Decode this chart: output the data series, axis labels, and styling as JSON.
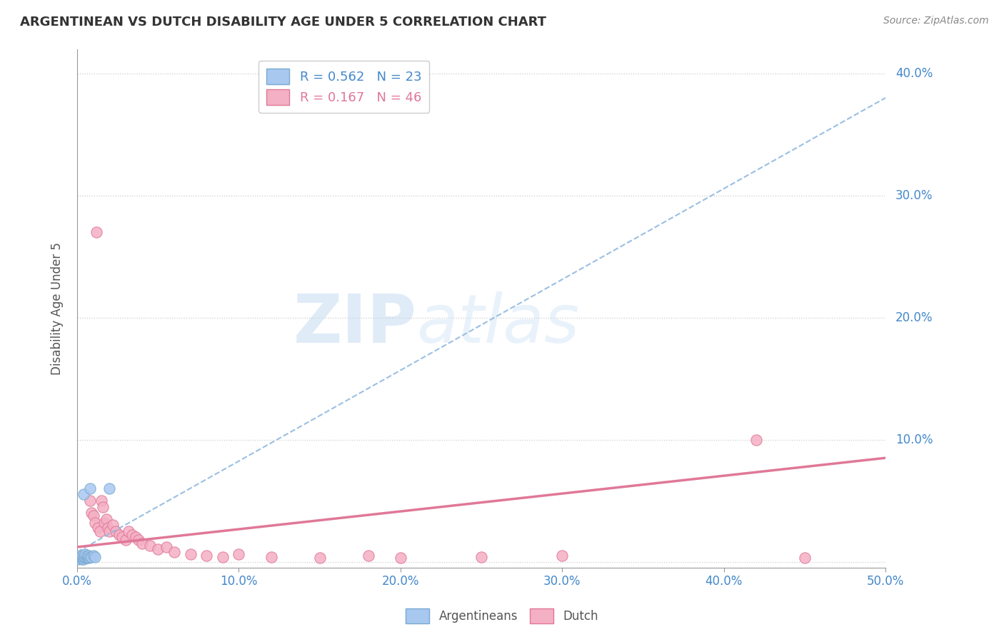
{
  "title": "ARGENTINEAN VS DUTCH DISABILITY AGE UNDER 5 CORRELATION CHART",
  "source": "Source: ZipAtlas.com",
  "ylabel": "Disability Age Under 5",
  "xlim": [
    0.0,
    0.5
  ],
  "ylim": [
    -0.005,
    0.42
  ],
  "xticks": [
    0.0,
    0.1,
    0.2,
    0.3,
    0.4,
    0.5
  ],
  "yticks": [
    0.0,
    0.1,
    0.2,
    0.3,
    0.4
  ],
  "arg_R": 0.562,
  "arg_N": 23,
  "dutch_R": 0.167,
  "dutch_N": 46,
  "arg_color": "#a8c8f0",
  "arg_edge_color": "#7aaad0",
  "dutch_color": "#f4b0c4",
  "dutch_edge_color": "#e07898",
  "arg_line_color": "#90b8e0",
  "dutch_line_color": "#e07898",
  "legend_label_arg": "Argentineans",
  "legend_label_dutch": "Dutch",
  "watermark_zip": "ZIP",
  "watermark_atlas": "atlas",
  "background_color": "#ffffff",
  "grid_color": "#cccccc",
  "title_color": "#333333",
  "axis_label_color": "#4488cc",
  "arg_line_x": [
    0.0,
    0.5
  ],
  "arg_line_y": [
    0.008,
    0.38
  ],
  "dutch_line_x": [
    0.0,
    0.5
  ],
  "dutch_line_y": [
    0.012,
    0.085
  ],
  "arg_points_x": [
    0.001,
    0.002,
    0.002,
    0.003,
    0.003,
    0.003,
    0.004,
    0.004,
    0.004,
    0.005,
    0.005,
    0.005,
    0.006,
    0.006,
    0.006,
    0.007,
    0.007,
    0.008,
    0.008,
    0.009,
    0.01,
    0.011,
    0.02
  ],
  "arg_points_y": [
    0.002,
    0.003,
    0.004,
    0.002,
    0.003,
    0.005,
    0.002,
    0.004,
    0.055,
    0.003,
    0.004,
    0.006,
    0.003,
    0.004,
    0.005,
    0.003,
    0.005,
    0.004,
    0.06,
    0.004,
    0.005,
    0.004,
    0.06
  ],
  "dutch_points_x": [
    0.001,
    0.002,
    0.003,
    0.004,
    0.005,
    0.006,
    0.007,
    0.008,
    0.009,
    0.01,
    0.011,
    0.012,
    0.013,
    0.014,
    0.015,
    0.016,
    0.017,
    0.018,
    0.019,
    0.02,
    0.022,
    0.024,
    0.026,
    0.028,
    0.03,
    0.032,
    0.034,
    0.036,
    0.038,
    0.04,
    0.045,
    0.05,
    0.055,
    0.06,
    0.07,
    0.08,
    0.09,
    0.1,
    0.12,
    0.15,
    0.18,
    0.2,
    0.25,
    0.3,
    0.42,
    0.45
  ],
  "dutch_points_y": [
    0.003,
    0.004,
    0.005,
    0.003,
    0.004,
    0.005,
    0.004,
    0.05,
    0.04,
    0.038,
    0.032,
    0.27,
    0.028,
    0.025,
    0.05,
    0.045,
    0.032,
    0.035,
    0.028,
    0.025,
    0.03,
    0.025,
    0.022,
    0.02,
    0.018,
    0.025,
    0.022,
    0.02,
    0.018,
    0.015,
    0.013,
    0.01,
    0.012,
    0.008,
    0.006,
    0.005,
    0.004,
    0.006,
    0.004,
    0.003,
    0.005,
    0.003,
    0.004,
    0.005,
    0.1,
    0.003
  ]
}
